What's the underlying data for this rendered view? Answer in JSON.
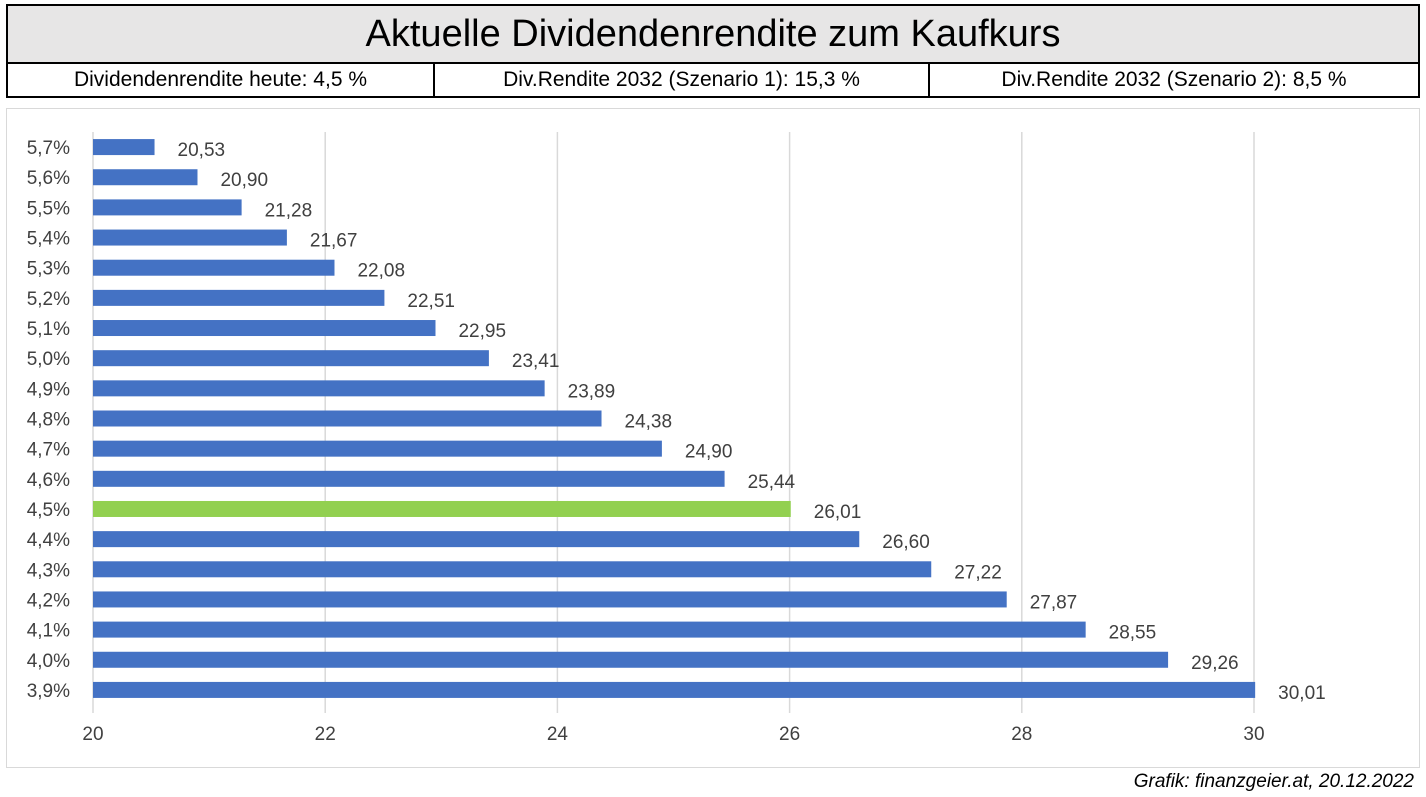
{
  "header": {
    "title": "Aktuelle Dividendenrendite zum Kaufkurs",
    "info": [
      "Dividendenrendite heute: 4,5 %",
      "Div.Rendite 2032 (Szenario 1): 15,3 %",
      "Div.Rendite 2032 (Szenario 2): 8,5 %"
    ]
  },
  "colors": {
    "bar": "#4472c4",
    "highlight": "#92d050",
    "grid": "#d9d9d9",
    "text": "#404040"
  },
  "chart_data": {
    "type": "bar",
    "orientation": "horizontal",
    "title": "",
    "xlabel": "",
    "ylabel": "",
    "xlim": [
      20,
      30
    ],
    "xticks": [
      20,
      22,
      24,
      26,
      28,
      30
    ],
    "grid": true,
    "categories": [
      "5,7%",
      "5,6%",
      "5,5%",
      "5,4%",
      "5,3%",
      "5,2%",
      "5,1%",
      "5,0%",
      "4,9%",
      "4,8%",
      "4,7%",
      "4,6%",
      "4,5%",
      "4,4%",
      "4,3%",
      "4,2%",
      "4,1%",
      "4,0%",
      "3,9%"
    ],
    "values": [
      20.53,
      20.9,
      21.28,
      21.67,
      22.08,
      22.51,
      22.95,
      23.41,
      23.89,
      24.38,
      24.9,
      25.44,
      26.01,
      26.6,
      27.22,
      27.87,
      28.55,
      29.26,
      30.01
    ],
    "value_labels": [
      "20,53",
      "20,90",
      "21,28",
      "21,67",
      "22,08",
      "22,51",
      "22,95",
      "23,41",
      "23,89",
      "24,38",
      "24,90",
      "25,44",
      "26,01",
      "26,60",
      "27,22",
      "27,87",
      "28,55",
      "29,26",
      "30,01"
    ],
    "highlight_category": "4,5%"
  },
  "footer": {
    "credit": "Grafik: finanzgeier.at, 20.12.2022"
  }
}
